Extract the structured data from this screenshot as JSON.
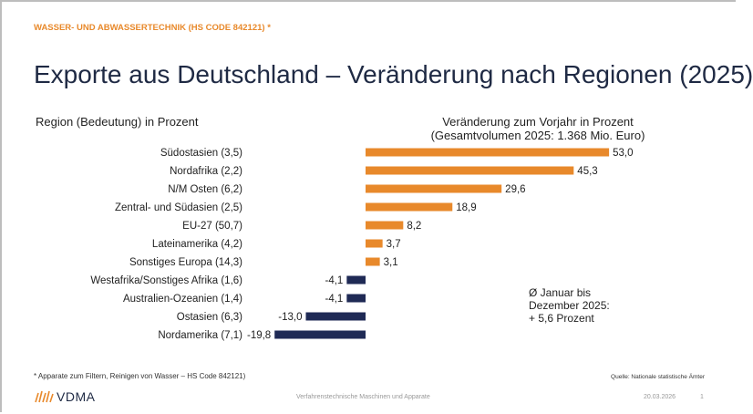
{
  "header": {
    "kicker": "WASSER- UND ABWASSERTECHNIK (HS CODE 842121) *",
    "title": "Exporte aus Deutschland – Veränderung nach Regionen (2025)"
  },
  "chart_data": {
    "type": "bar",
    "orientation": "horizontal",
    "category_header": "Region (Bedeutung) in Prozent",
    "value_header_line1": "Veränderung zum Vorjahr in Prozent",
    "value_header_line2": "(Gesamtvolumen 2025: 1.368 Mio. Euro)",
    "categories": [
      "Südostasien (3,5)",
      "Nordafrika (2,2)",
      "N/M Osten (6,2)",
      "Zentral- und Südasien (2,5)",
      "EU-27 (50,7)",
      "Lateinamerika (4,2)",
      "Sonstiges Europa (14,3)",
      "Westafrika/Sonstiges Afrika (1,6)",
      "Australien-Ozeanien (1,4)",
      "Ostasien (6,3)",
      "Nordamerika (7,1)"
    ],
    "values": [
      53.0,
      45.3,
      29.6,
      18.9,
      8.2,
      3.7,
      3.1,
      -4.1,
      -4.1,
      -13.0,
      -19.8
    ],
    "value_labels": [
      "53,0",
      "45,3",
      "29,6",
      "18,9",
      "8,2",
      "3,7",
      "3,1",
      "-4,1",
      "-4,1",
      "-13,0",
      "-19,8"
    ],
    "positive_color": "#e8892b",
    "negative_color": "#1f2a55",
    "annotation": [
      "Ø Januar bis",
      "Dezember 2025:",
      "+ 5,6 Prozent"
    ]
  },
  "footer": {
    "footnote": "* Apparate zum Filtern, Reinigen von Wasser – HS Code 842121)",
    "source": "Quelle: Nationale statistische Ämter",
    "logo": "VDMA",
    "center": "Verfahrenstechnische Maschinen und Apparate",
    "date": "20.03.2026",
    "page": "1"
  }
}
